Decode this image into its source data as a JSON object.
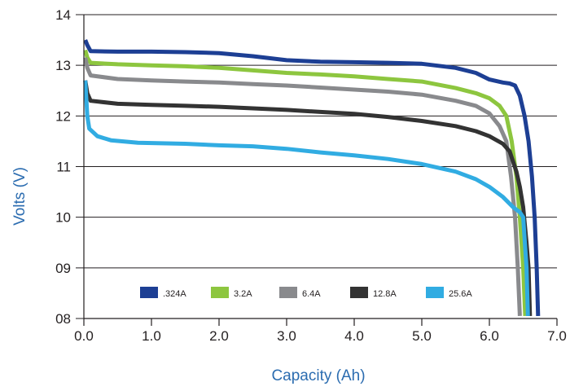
{
  "chart_data": {
    "type": "line",
    "title": "",
    "xlabel": "Capacity (Ah)",
    "ylabel": "Volts (V)",
    "xlim": [
      0,
      7
    ],
    "ylim": [
      8,
      14
    ],
    "x_ticks": [
      "0.0",
      "1.0",
      "2.0",
      "3.0",
      "4.0",
      "5.0",
      "6.0",
      "7.0"
    ],
    "y_ticks": [
      "08",
      "09",
      "10",
      "11",
      "12",
      "13",
      "14"
    ],
    "grid": "horizontal",
    "legend_position": "bottom-center",
    "axis_title_color": "#2b6cb0",
    "series": [
      {
        "name": ".324A",
        "color": "#1d3f94",
        "points": [
          [
            0.02,
            13.5
          ],
          [
            0.05,
            13.4
          ],
          [
            0.1,
            13.28
          ],
          [
            0.5,
            13.27
          ],
          [
            1.0,
            13.27
          ],
          [
            1.5,
            13.26
          ],
          [
            2.0,
            13.24
          ],
          [
            2.5,
            13.18
          ],
          [
            3.0,
            13.1
          ],
          [
            3.5,
            13.07
          ],
          [
            4.0,
            13.06
          ],
          [
            4.5,
            13.05
          ],
          [
            5.0,
            13.03
          ],
          [
            5.5,
            12.95
          ],
          [
            5.8,
            12.85
          ],
          [
            6.0,
            12.72
          ],
          [
            6.2,
            12.66
          ],
          [
            6.3,
            12.64
          ],
          [
            6.38,
            12.6
          ],
          [
            6.45,
            12.4
          ],
          [
            6.52,
            12.0
          ],
          [
            6.58,
            11.5
          ],
          [
            6.63,
            10.8
          ],
          [
            6.67,
            10.0
          ],
          [
            6.7,
            9.0
          ],
          [
            6.72,
            8.05
          ]
        ]
      },
      {
        "name": "3.2A",
        "color": "#8dc63f",
        "points": [
          [
            0.02,
            13.3
          ],
          [
            0.05,
            13.15
          ],
          [
            0.1,
            13.05
          ],
          [
            0.5,
            13.02
          ],
          [
            1.0,
            13.0
          ],
          [
            1.5,
            12.98
          ],
          [
            2.0,
            12.95
          ],
          [
            2.5,
            12.9
          ],
          [
            3.0,
            12.85
          ],
          [
            3.5,
            12.82
          ],
          [
            4.0,
            12.78
          ],
          [
            4.5,
            12.73
          ],
          [
            5.0,
            12.68
          ],
          [
            5.5,
            12.55
          ],
          [
            5.8,
            12.45
          ],
          [
            6.0,
            12.35
          ],
          [
            6.15,
            12.2
          ],
          [
            6.25,
            12.0
          ],
          [
            6.33,
            11.5
          ],
          [
            6.4,
            10.8
          ],
          [
            6.45,
            10.0
          ],
          [
            6.5,
            9.0
          ],
          [
            6.53,
            8.05
          ]
        ]
      },
      {
        "name": "6.4A",
        "color": "#898a8d",
        "points": [
          [
            0.02,
            13.15
          ],
          [
            0.05,
            12.95
          ],
          [
            0.1,
            12.8
          ],
          [
            0.5,
            12.73
          ],
          [
            1.0,
            12.7
          ],
          [
            1.5,
            12.68
          ],
          [
            2.0,
            12.66
          ],
          [
            2.5,
            12.63
          ],
          [
            3.0,
            12.6
          ],
          [
            3.5,
            12.56
          ],
          [
            4.0,
            12.52
          ],
          [
            4.5,
            12.48
          ],
          [
            5.0,
            12.42
          ],
          [
            5.5,
            12.3
          ],
          [
            5.8,
            12.2
          ],
          [
            6.0,
            12.05
          ],
          [
            6.15,
            11.8
          ],
          [
            6.25,
            11.5
          ],
          [
            6.32,
            10.8
          ],
          [
            6.38,
            10.0
          ],
          [
            6.42,
            9.0
          ],
          [
            6.45,
            8.05
          ]
        ]
      },
      {
        "name": "12.8A",
        "color": "#333333",
        "points": [
          [
            0.02,
            12.7
          ],
          [
            0.05,
            12.45
          ],
          [
            0.1,
            12.3
          ],
          [
            0.5,
            12.24
          ],
          [
            1.0,
            12.22
          ],
          [
            1.5,
            12.2
          ],
          [
            2.0,
            12.18
          ],
          [
            2.5,
            12.15
          ],
          [
            3.0,
            12.12
          ],
          [
            3.5,
            12.08
          ],
          [
            4.0,
            12.04
          ],
          [
            4.5,
            11.98
          ],
          [
            5.0,
            11.9
          ],
          [
            5.5,
            11.8
          ],
          [
            5.8,
            11.7
          ],
          [
            6.0,
            11.6
          ],
          [
            6.2,
            11.45
          ],
          [
            6.3,
            11.3
          ],
          [
            6.4,
            10.9
          ],
          [
            6.45,
            10.6
          ],
          [
            6.5,
            10.2
          ],
          [
            6.55,
            9.5
          ],
          [
            6.58,
            9.0
          ],
          [
            6.6,
            8.05
          ]
        ]
      },
      {
        "name": "25.6A",
        "color": "#31ace2",
        "points": [
          [
            0.02,
            12.7
          ],
          [
            0.05,
            12.0
          ],
          [
            0.08,
            11.75
          ],
          [
            0.2,
            11.6
          ],
          [
            0.4,
            11.52
          ],
          [
            0.8,
            11.47
          ],
          [
            1.5,
            11.45
          ],
          [
            2.0,
            11.42
          ],
          [
            2.5,
            11.4
          ],
          [
            3.0,
            11.35
          ],
          [
            3.5,
            11.28
          ],
          [
            4.0,
            11.22
          ],
          [
            4.5,
            11.15
          ],
          [
            5.0,
            11.05
          ],
          [
            5.5,
            10.9
          ],
          [
            5.8,
            10.75
          ],
          [
            6.0,
            10.6
          ],
          [
            6.2,
            10.4
          ],
          [
            6.35,
            10.2
          ],
          [
            6.45,
            10.1
          ],
          [
            6.5,
            10.0
          ],
          [
            6.55,
            9.0
          ],
          [
            6.57,
            8.05
          ]
        ]
      }
    ]
  }
}
